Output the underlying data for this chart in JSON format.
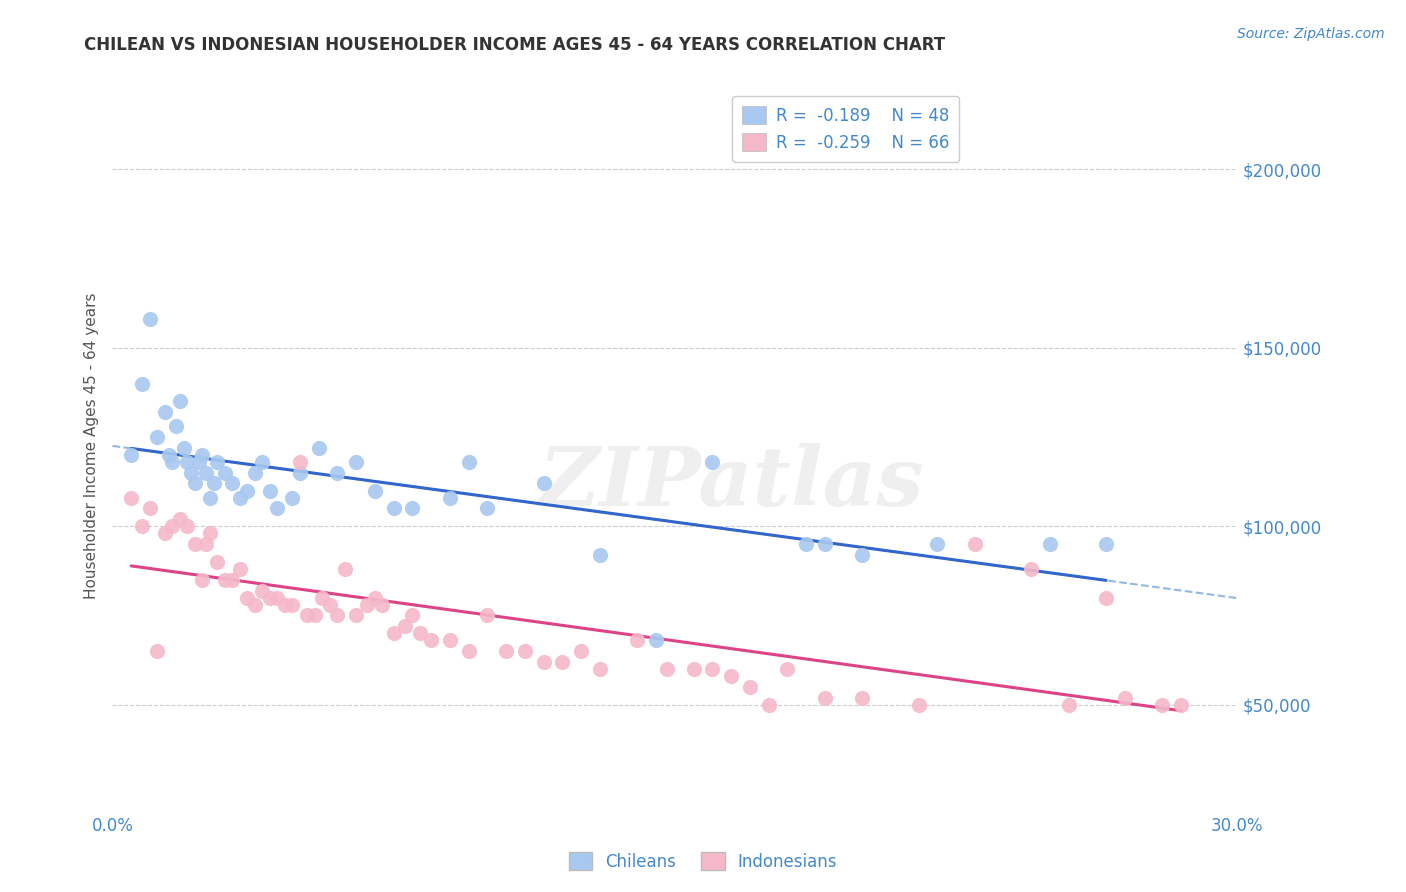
{
  "title": "CHILEAN VS INDONESIAN HOUSEHOLDER INCOME AGES 45 - 64 YEARS CORRELATION CHART",
  "source": "Source: ZipAtlas.com",
  "ylabel": "Householder Income Ages 45 - 64 years",
  "xlim": [
    0.0,
    0.3
  ],
  "ylim": [
    20000,
    225000
  ],
  "yticks": [
    50000,
    100000,
    150000,
    200000
  ],
  "ytick_labels": [
    "$50,000",
    "$100,000",
    "$150,000",
    "$200,000"
  ],
  "xticks": [
    0.0,
    0.05,
    0.1,
    0.15,
    0.2,
    0.25,
    0.3
  ],
  "xtick_labels": [
    "0.0%",
    "",
    "",
    "",
    "",
    "",
    "30.0%"
  ],
  "chilean_color": "#a8c8f0",
  "indonesian_color": "#f5b8c8",
  "chilean_line_color": "#3366cc",
  "indonesian_line_color": "#dd4488",
  "chilean_dash_color": "#6699dd",
  "title_color": "#333333",
  "axis_label_color": "#555555",
  "tick_color": "#4488cc",
  "watermark_text": "ZIPatlas",
  "grid_color": "#cccccc",
  "chilean_x": [
    0.005,
    0.008,
    0.01,
    0.012,
    0.014,
    0.015,
    0.016,
    0.017,
    0.018,
    0.019,
    0.02,
    0.021,
    0.022,
    0.023,
    0.024,
    0.025,
    0.026,
    0.027,
    0.028,
    0.03,
    0.032,
    0.034,
    0.036,
    0.038,
    0.04,
    0.042,
    0.044,
    0.048,
    0.05,
    0.055,
    0.06,
    0.065,
    0.07,
    0.075,
    0.08,
    0.09,
    0.095,
    0.1,
    0.115,
    0.13,
    0.145,
    0.16,
    0.185,
    0.19,
    0.2,
    0.22,
    0.25,
    0.265
  ],
  "chilean_y": [
    120000,
    140000,
    158000,
    125000,
    132000,
    120000,
    118000,
    128000,
    135000,
    122000,
    118000,
    115000,
    112000,
    118000,
    120000,
    115000,
    108000,
    112000,
    118000,
    115000,
    112000,
    108000,
    110000,
    115000,
    118000,
    110000,
    105000,
    108000,
    115000,
    122000,
    115000,
    118000,
    110000,
    105000,
    105000,
    108000,
    118000,
    105000,
    112000,
    92000,
    68000,
    118000,
    95000,
    95000,
    92000,
    95000,
    95000,
    95000
  ],
  "indonesian_x": [
    0.005,
    0.008,
    0.01,
    0.012,
    0.014,
    0.016,
    0.018,
    0.02,
    0.022,
    0.024,
    0.025,
    0.026,
    0.028,
    0.03,
    0.032,
    0.034,
    0.036,
    0.038,
    0.04,
    0.042,
    0.044,
    0.046,
    0.048,
    0.05,
    0.052,
    0.054,
    0.056,
    0.058,
    0.06,
    0.062,
    0.065,
    0.068,
    0.07,
    0.072,
    0.075,
    0.078,
    0.08,
    0.082,
    0.085,
    0.09,
    0.095,
    0.1,
    0.105,
    0.11,
    0.115,
    0.12,
    0.125,
    0.13,
    0.14,
    0.148,
    0.155,
    0.16,
    0.165,
    0.17,
    0.175,
    0.18,
    0.19,
    0.2,
    0.215,
    0.23,
    0.245,
    0.255,
    0.265,
    0.27,
    0.28,
    0.285
  ],
  "indonesian_y": [
    108000,
    100000,
    105000,
    65000,
    98000,
    100000,
    102000,
    100000,
    95000,
    85000,
    95000,
    98000,
    90000,
    85000,
    85000,
    88000,
    80000,
    78000,
    82000,
    80000,
    80000,
    78000,
    78000,
    118000,
    75000,
    75000,
    80000,
    78000,
    75000,
    88000,
    75000,
    78000,
    80000,
    78000,
    70000,
    72000,
    75000,
    70000,
    68000,
    68000,
    65000,
    75000,
    65000,
    65000,
    62000,
    62000,
    65000,
    60000,
    68000,
    60000,
    60000,
    60000,
    58000,
    55000,
    50000,
    60000,
    52000,
    52000,
    50000,
    95000,
    88000,
    50000,
    80000,
    52000,
    50000,
    50000
  ]
}
